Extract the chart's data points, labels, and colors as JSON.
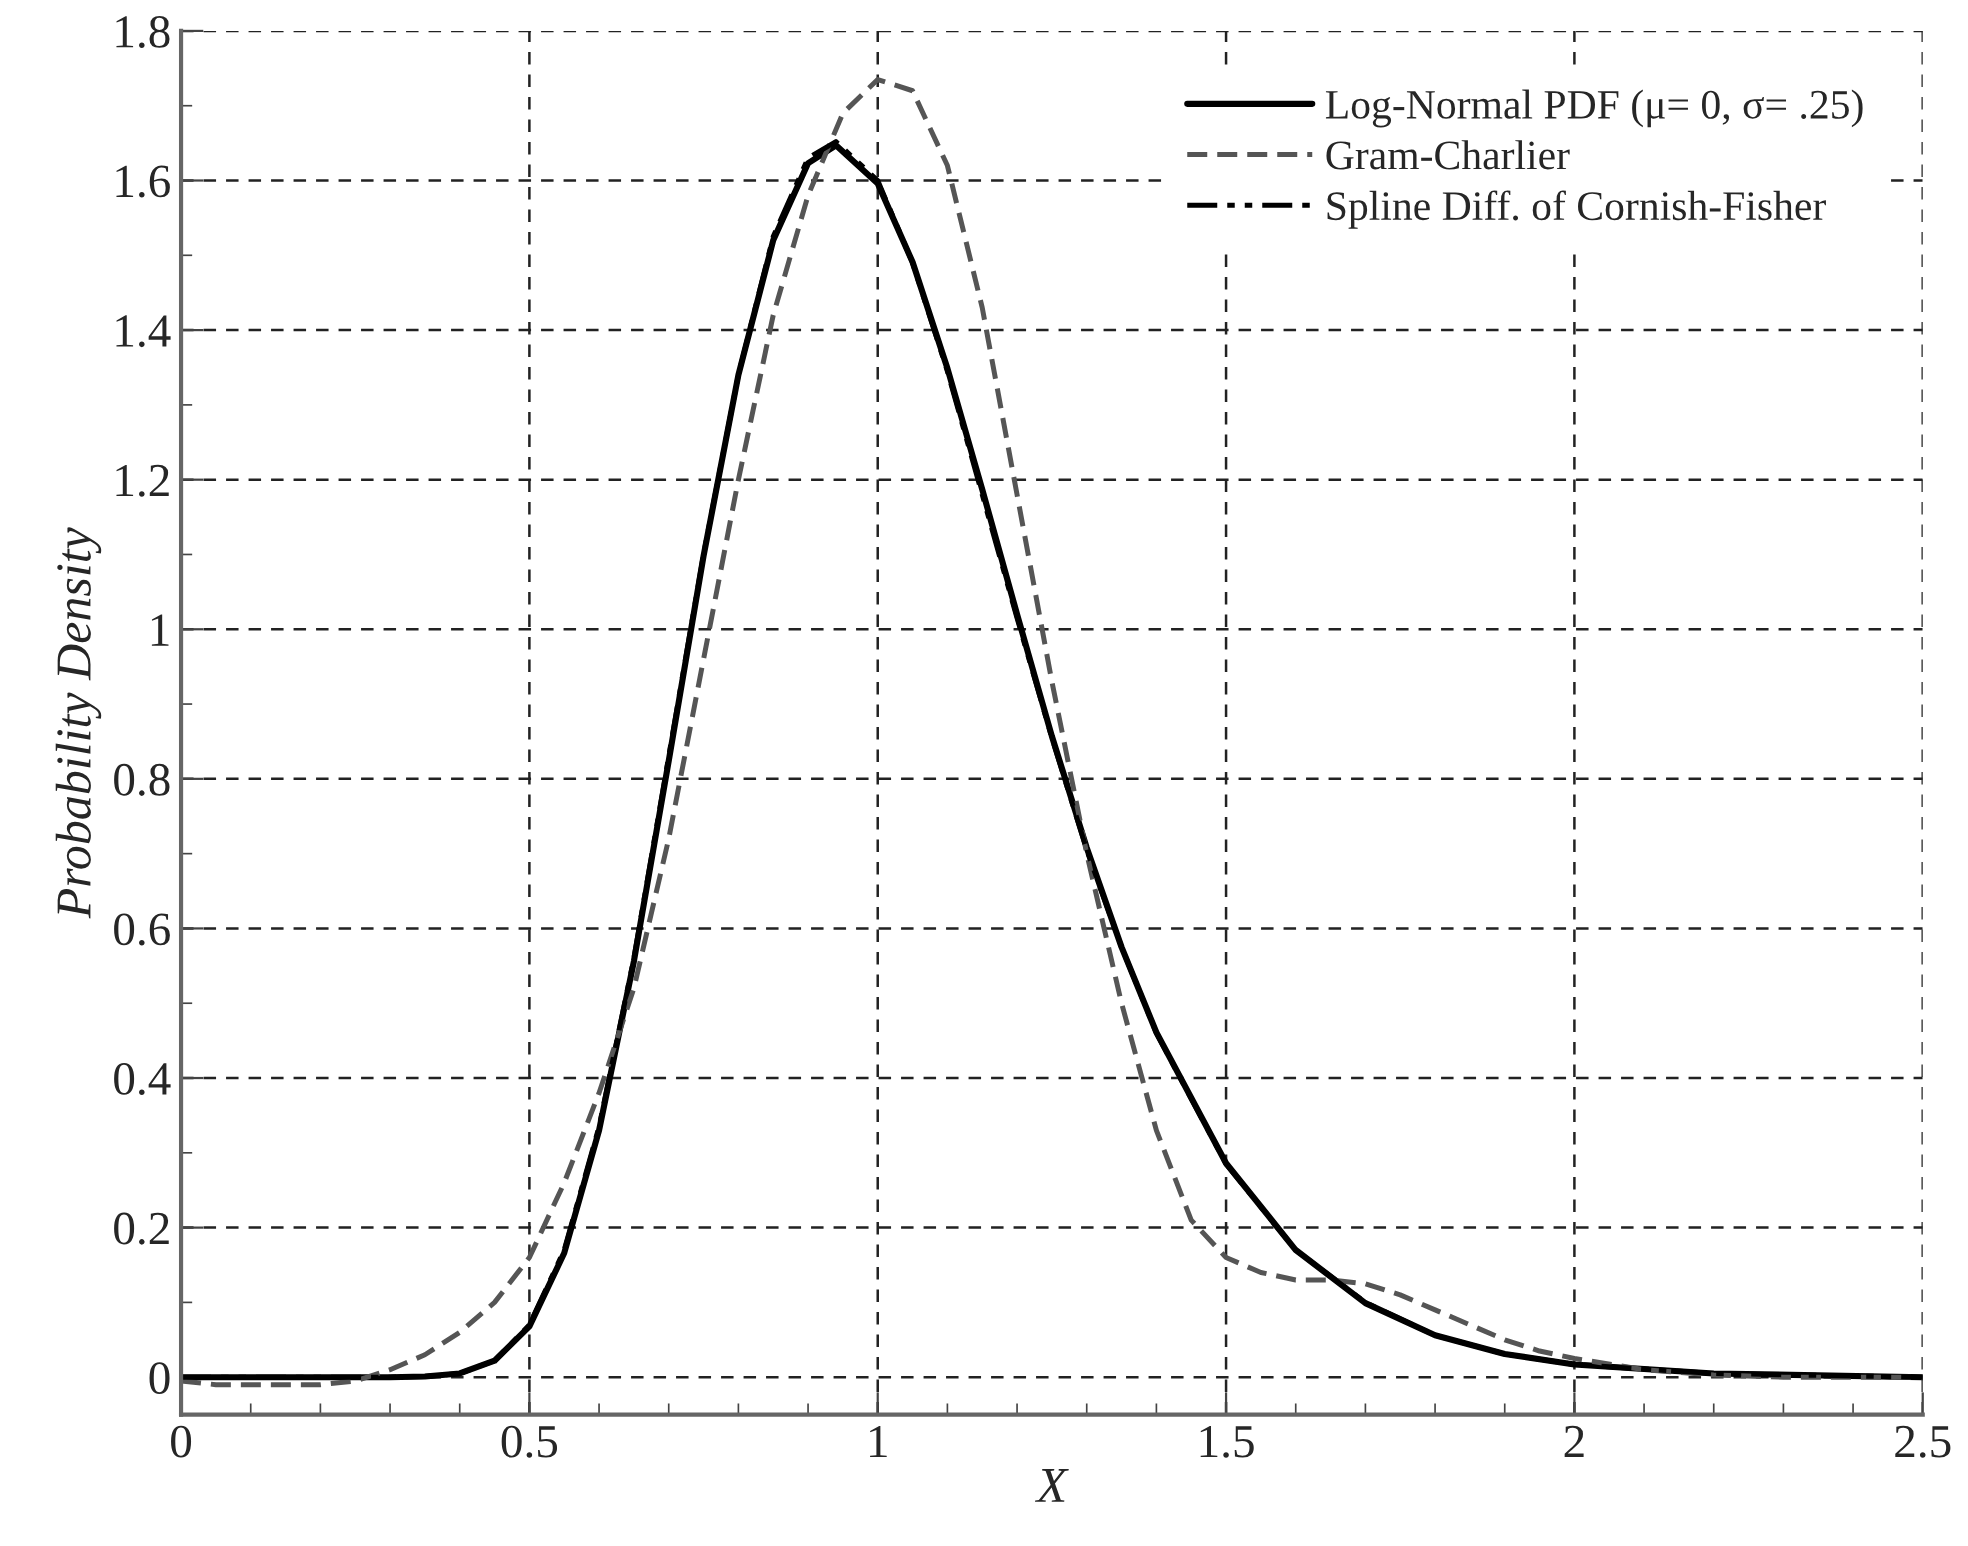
{
  "chart_data": {
    "type": "line",
    "xlabel": "X",
    "ylabel": "Probability Density",
    "xlim": [
      0,
      2.5
    ],
    "ylim": [
      -0.05,
      1.8
    ],
    "xticks": [
      0,
      {
        "value": 0.1,
        "label": null
      },
      {
        "value": 0.2,
        "label": null
      },
      {
        "value": 0.3,
        "label": null
      },
      {
        "value": 0.4,
        "label": null
      },
      0.5,
      {
        "value": 0.6,
        "label": null
      },
      {
        "value": 0.7,
        "label": null
      },
      {
        "value": 0.8,
        "label": null
      },
      {
        "value": 0.9,
        "label": null
      },
      1,
      {
        "value": 1.1,
        "label": null
      },
      {
        "value": 1.2,
        "label": null
      },
      {
        "value": 1.3,
        "label": null
      },
      {
        "value": 1.4,
        "label": null
      },
      1.5,
      {
        "value": 1.6,
        "label": null
      },
      {
        "value": 1.7,
        "label": null
      },
      {
        "value": 1.8,
        "label": null
      },
      {
        "value": 1.9,
        "label": null
      },
      2,
      {
        "value": 2.1,
        "label": null
      },
      {
        "value": 2.2,
        "label": null
      },
      {
        "value": 2.3,
        "label": null
      },
      {
        "value": 2.4,
        "label": null
      },
      2.5
    ],
    "yticks": [
      0,
      {
        "value": 0.1,
        "label": null
      },
      0.2,
      {
        "value": 0.3,
        "label": null
      },
      0.4,
      {
        "value": 0.5,
        "label": null
      },
      0.6,
      {
        "value": 0.7,
        "label": null
      },
      0.8,
      {
        "value": 0.9,
        "label": null
      },
      1,
      {
        "value": 1.1,
        "label": null
      },
      1.2,
      {
        "value": 1.3,
        "label": null
      },
      1.4,
      {
        "value": 1.5,
        "label": null
      },
      1.6,
      {
        "value": 1.7,
        "label": null
      },
      1.8
    ],
    "grid": true,
    "legend": "top right",
    "marker": "none",
    "series": [
      {
        "name": "Log-Normal PDF (μ= 0, σ= .25)",
        "color": "#000000",
        "line_style": "solid",
        "x": [
          0,
          0.1,
          0.2,
          0.3,
          0.35,
          0.4,
          0.45,
          0.5,
          0.55,
          0.6,
          0.65,
          0.7,
          0.75,
          0.8,
          0.85,
          0.9,
          0.94,
          1.0,
          1.05,
          1.1,
          1.15,
          1.2,
          1.25,
          1.3,
          1.35,
          1.4,
          1.5,
          1.6,
          1.7,
          1.8,
          1.9,
          2.0,
          2.2,
          2.5
        ],
        "values": [
          0,
          0,
          0,
          0,
          0.001,
          0.005,
          0.022,
          0.068,
          0.166,
          0.33,
          0.556,
          0.824,
          1.098,
          1.34,
          1.52,
          1.623,
          1.647,
          1.596,
          1.491,
          1.349,
          1.187,
          1.02,
          0.857,
          0.708,
          0.575,
          0.461,
          0.286,
          0.17,
          0.099,
          0.056,
          0.031,
          0.017,
          0.005,
          0
        ]
      },
      {
        "name": "Gram-Charlier",
        "color": "#555555",
        "line_style": "dashed",
        "x": [
          0,
          0.05,
          0.1,
          0.2,
          0.25,
          0.3,
          0.35,
          0.4,
          0.45,
          0.5,
          0.55,
          0.6,
          0.65,
          0.7,
          0.75,
          0.8,
          0.85,
          0.9,
          0.95,
          1.0,
          1.05,
          1.1,
          1.15,
          1.2,
          1.25,
          1.3,
          1.35,
          1.4,
          1.45,
          1.5,
          1.55,
          1.6,
          1.65,
          1.7,
          1.75,
          1.8,
          1.85,
          1.9,
          1.95,
          2.0,
          2.1,
          2.2,
          2.3,
          2.5
        ],
        "values": [
          -0.005,
          -0.01,
          -0.01,
          -0.01,
          -0.005,
          0.01,
          0.03,
          0.06,
          0.1,
          0.16,
          0.26,
          0.38,
          0.52,
          0.72,
          0.96,
          1.2,
          1.42,
          1.58,
          1.69,
          1.735,
          1.72,
          1.62,
          1.43,
          1.18,
          0.93,
          0.7,
          0.5,
          0.33,
          0.21,
          0.16,
          0.14,
          0.13,
          0.13,
          0.125,
          0.11,
          0.09,
          0.07,
          0.05,
          0.035,
          0.025,
          0.01,
          0.003,
          0,
          0
        ]
      },
      {
        "name": "Spline Diff. of Cornish-Fisher",
        "color": "#000000",
        "line_style": "dashdot",
        "x": [
          0,
          0.1,
          0.2,
          0.3,
          0.35,
          0.4,
          0.45,
          0.5,
          0.55,
          0.6,
          0.65,
          0.7,
          0.75,
          0.8,
          0.85,
          0.9,
          0.94,
          1.0,
          1.05,
          1.1,
          1.15,
          1.2,
          1.25,
          1.3,
          1.35,
          1.4,
          1.5,
          1.6,
          1.7,
          1.8,
          1.9,
          2.0,
          2.2,
          2.5
        ],
        "values": [
          0,
          0,
          0,
          0,
          0.001,
          0.005,
          0.022,
          0.07,
          0.17,
          0.335,
          0.56,
          0.83,
          1.1,
          1.34,
          1.525,
          1.63,
          1.652,
          1.6,
          1.49,
          1.345,
          1.18,
          1.015,
          0.855,
          0.705,
          0.575,
          0.46,
          0.285,
          0.17,
          0.1,
          0.056,
          0.031,
          0.017,
          0.005,
          0
        ]
      }
    ]
  }
}
